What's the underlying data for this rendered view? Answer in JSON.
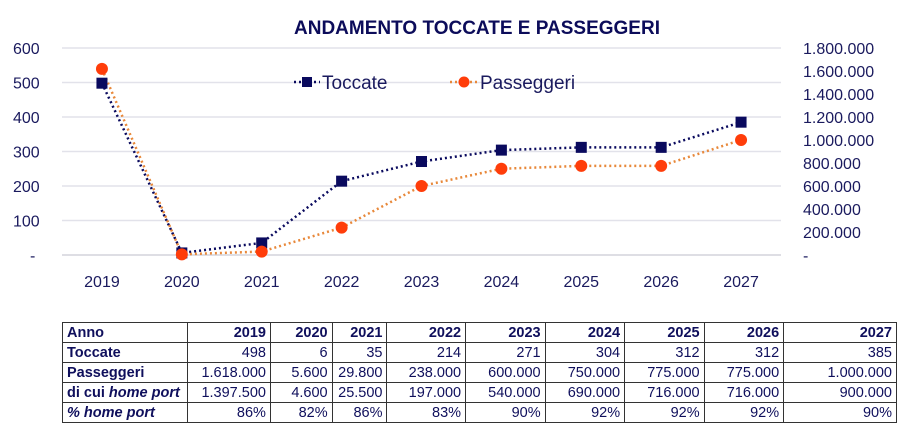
{
  "chart_data": {
    "type": "line",
    "title": "ANDAMENTO TOCCATE E PASSEGGERI",
    "categories": [
      "2019",
      "2020",
      "2021",
      "2022",
      "2023",
      "2024",
      "2025",
      "2026",
      "2027"
    ],
    "series": [
      {
        "name": "Toccate",
        "axis": "left",
        "color": "#0a0a5e",
        "marker": "square",
        "line_style": "dotted",
        "values": [
          498,
          6,
          35,
          214,
          271,
          304,
          312,
          312,
          385
        ]
      },
      {
        "name": "Passeggeri",
        "axis": "right",
        "color": "#ff3d0a",
        "line_color": "#e8883a",
        "marker": "circle",
        "line_style": "dotted",
        "values": [
          1618000,
          5600,
          29800,
          238000,
          600000,
          750000,
          775000,
          775000,
          1000000
        ]
      }
    ],
    "y_left": {
      "range": [
        0,
        600
      ],
      "ticks": [
        "-",
        "100",
        "200",
        "300",
        "400",
        "500",
        "600"
      ]
    },
    "y_right": {
      "range": [
        0,
        1800000
      ],
      "ticks": [
        "-",
        "200.000",
        "400.000",
        "600.000",
        "800.000",
        "1.000.000",
        "1.200.000",
        "1.400.000",
        "1.600.000",
        "1.800.000"
      ]
    },
    "grid": true,
    "legend": "top-center"
  },
  "table": {
    "header": [
      "Anno",
      "2019",
      "2020",
      "2021",
      "2022",
      "2023",
      "2024",
      "2025",
      "2026",
      "2027"
    ],
    "rows": [
      {
        "label": "Toccate",
        "label_style": "bold",
        "values": [
          "498",
          "6",
          "35",
          "214",
          "271",
          "304",
          "312",
          "312",
          "385"
        ]
      },
      {
        "label": "Passeggeri",
        "label_style": "bold",
        "values": [
          "1.618.000",
          "5.600",
          "29.800",
          "238.000",
          "600.000",
          "750.000",
          "775.000",
          "775.000",
          "1.000.000"
        ]
      },
      {
        "label_prefix": "di cui ",
        "label_italic": "home port",
        "values": [
          "1.397.500",
          "4.600",
          "25.500",
          "197.000",
          "540.000",
          "690.000",
          "716.000",
          "716.000",
          "900.000"
        ]
      },
      {
        "label_italic": "% home port",
        "values": [
          "86%",
          "82%",
          "86%",
          "83%",
          "90%",
          "92%",
          "92%",
          "92%",
          "90%"
        ]
      }
    ]
  }
}
